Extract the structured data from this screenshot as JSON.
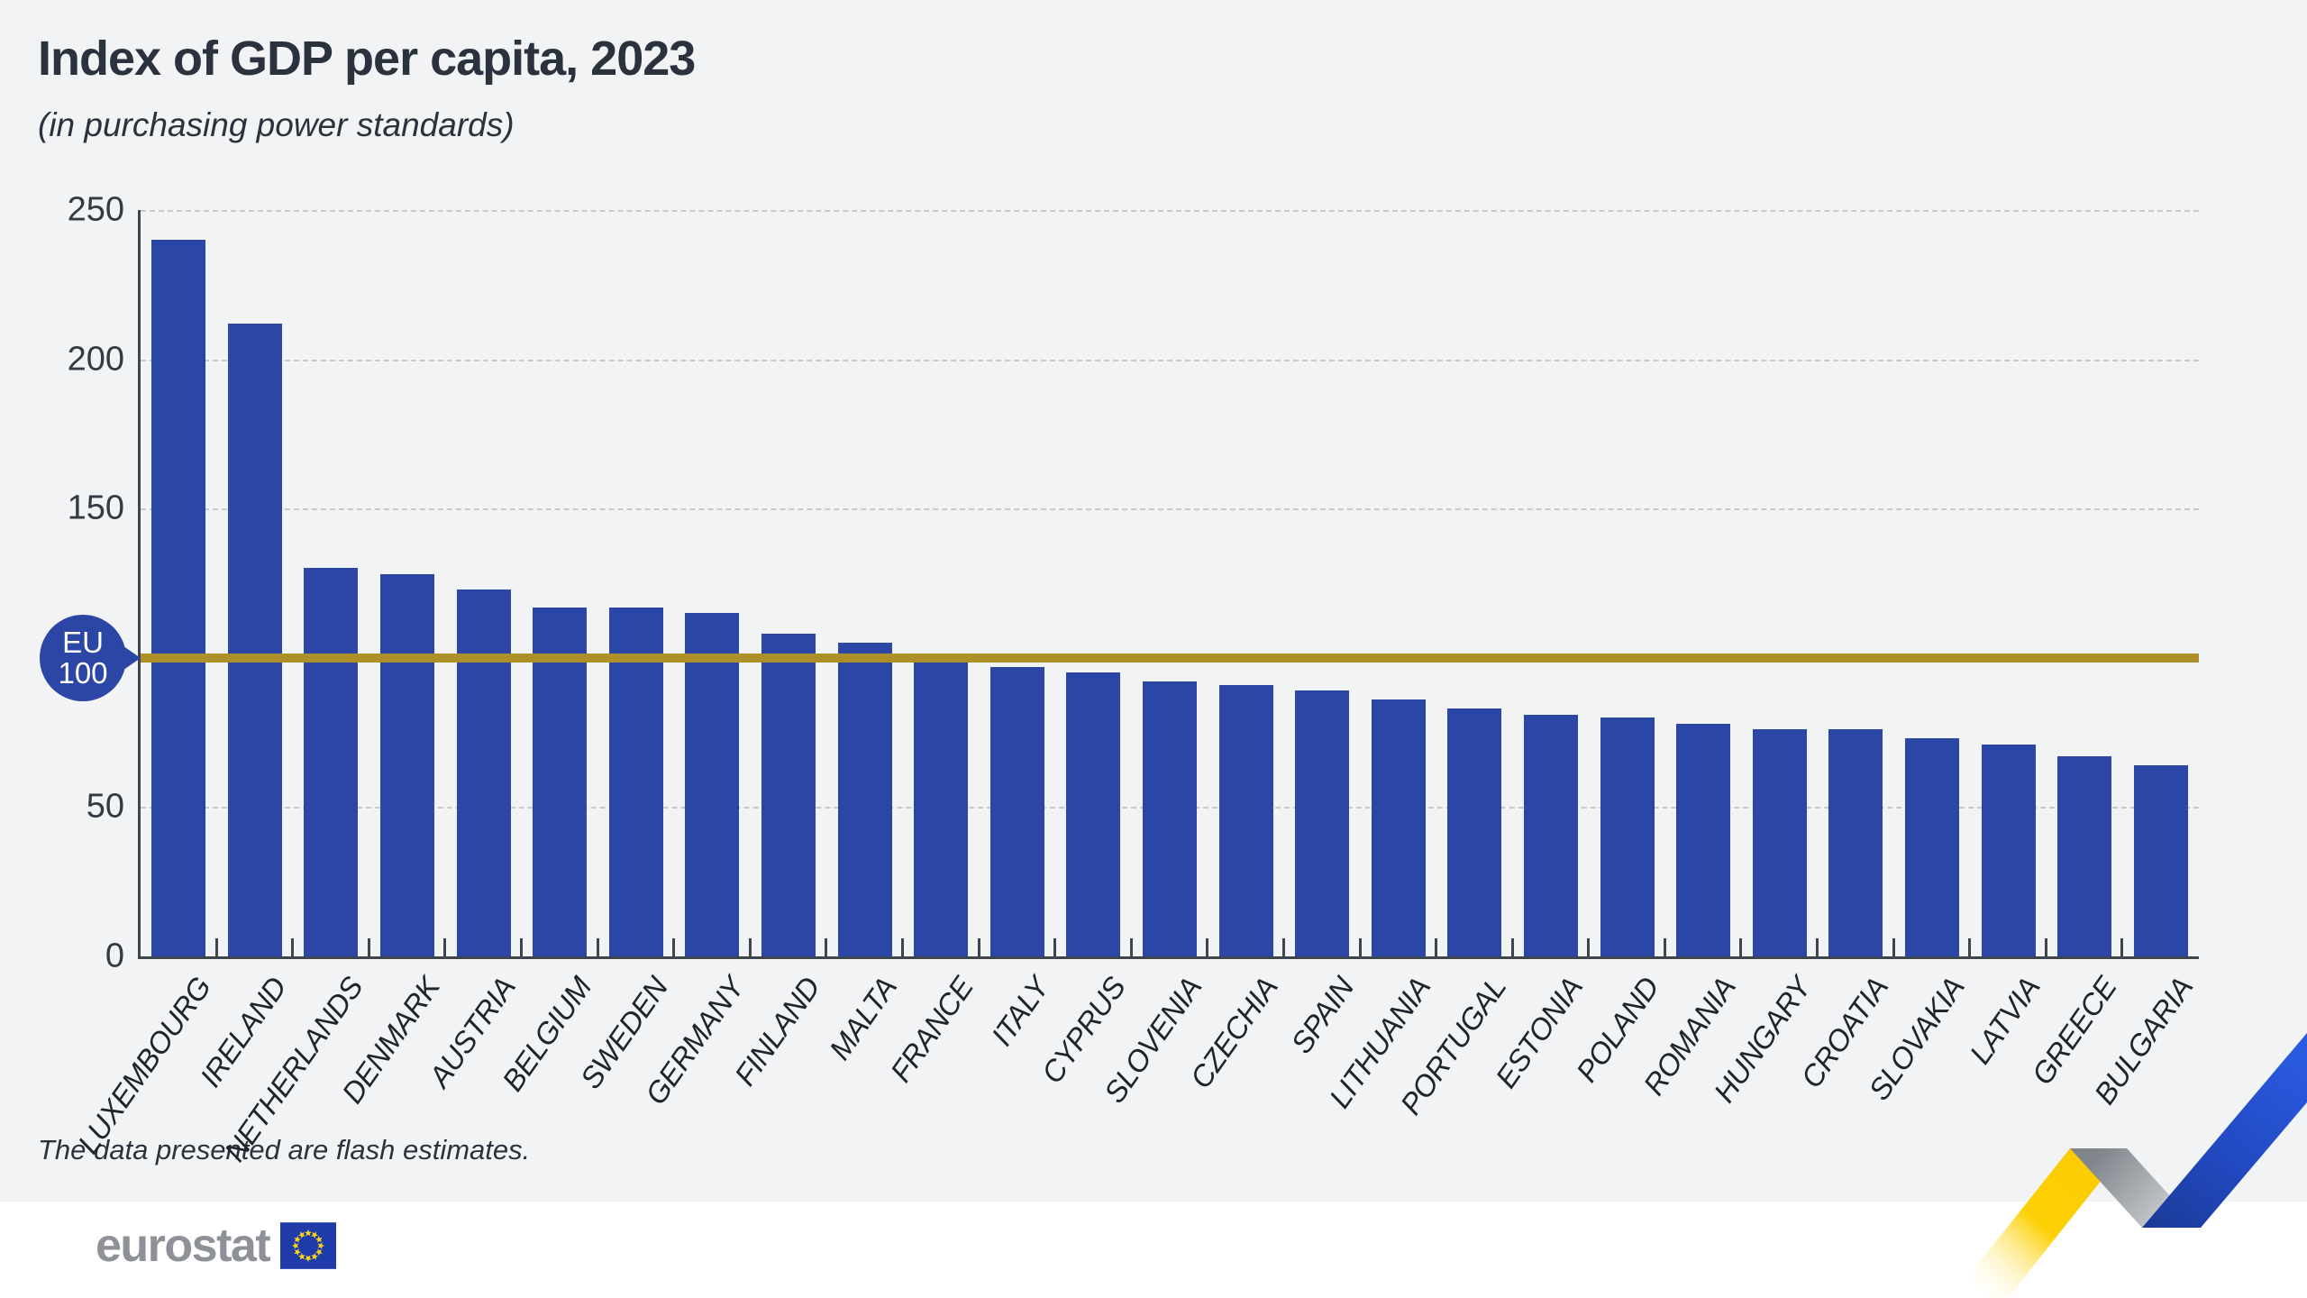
{
  "header": {
    "title": "Index of GDP per capita, 2023",
    "subtitle": "(in purchasing power standards)"
  },
  "note": "The data presented are flash estimates.",
  "eu_badge": {
    "line1": "EU",
    "line2": "100"
  },
  "logo": {
    "text": "eurostat"
  },
  "colors": {
    "background": "#f2f3f4",
    "footer_background": "#ffffff",
    "text_dark": "#2a323d",
    "axis": "#3f454c",
    "grid": "#c7c9cb",
    "bar_color": "#2b46a5",
    "eu_line": "#ad9128",
    "badge": "#2b46a5",
    "flag_blue": "#1e3ba9",
    "star_yellow": "#ffd617",
    "logo_gray": "#8e9298",
    "ribbon_yellow": "#fdd105",
    "ribbon_gray": "#b9bdc1",
    "ribbon_blue": "#2149c0"
  },
  "chart_data": {
    "type": "bar",
    "title": "Index of GDP per capita, 2023",
    "subtitle": "(in purchasing power standards)",
    "categories": [
      "LUXEMBOURG",
      "IRELAND",
      "NETHERLANDS",
      "DENMARK",
      "AUSTRIA",
      "BELGIUM",
      "SWEDEN",
      "GERMANY",
      "FINLAND",
      "MALTA",
      "FRANCE",
      "ITALY",
      "CYPRUS",
      "SLOVENIA",
      "CZECHIA",
      "SPAIN",
      "LITHUANIA",
      "PORTUGAL",
      "ESTONIA",
      "POLAND",
      "ROMANIA",
      "HUNGARY",
      "CROATIA",
      "SLOVAKIA",
      "LATVIA",
      "GREECE",
      "BULGARIA"
    ],
    "values": [
      240,
      212,
      130,
      128,
      123,
      117,
      117,
      115,
      108,
      105,
      99,
      97,
      95,
      92,
      91,
      89,
      86,
      83,
      81,
      80,
      78,
      76,
      76,
      73,
      71,
      67,
      64
    ],
    "ylim": [
      0,
      250
    ],
    "yticks_shown": [
      {
        "value": 250,
        "label": "250"
      },
      {
        "value": 200,
        "label": "200"
      },
      {
        "value": 150,
        "label": "150"
      },
      {
        "value": 50,
        "label": "50"
      },
      {
        "value": 0,
        "label": "0"
      }
    ],
    "gridline_values": [
      250,
      200,
      150,
      50
    ],
    "reference_line": {
      "label": "EU 100",
      "value": 100
    },
    "grid": "dashed-horizontal",
    "legend_position": "none"
  }
}
